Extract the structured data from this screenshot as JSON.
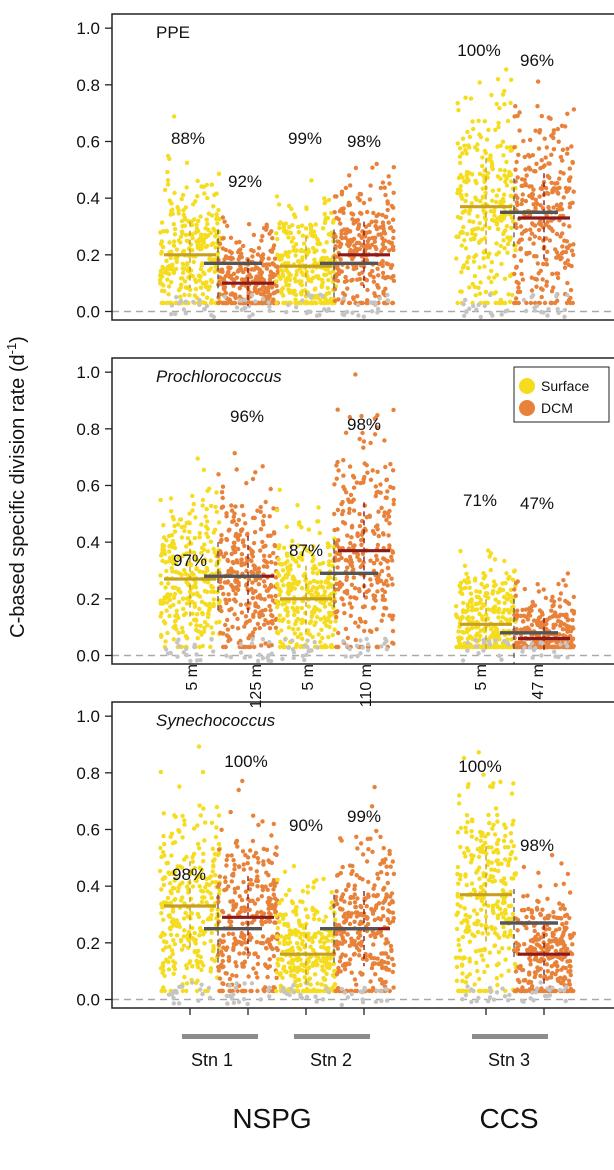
{
  "figure": {
    "ylabel": "C-based specific division rate (d",
    "ylabel_sup": "-1",
    "ylabel_close": ")",
    "legend": [
      {
        "label": "Surface",
        "color": "#f5dc1e"
      },
      {
        "label": "DCM",
        "color": "#e8823a"
      }
    ],
    "sample_ticks": [
      "5 m",
      "125 m",
      "5 m",
      "110 m",
      "5 m",
      "47 m"
    ],
    "stations": [
      "Stn 1",
      "Stn 2",
      "Stn 3"
    ],
    "regions": [
      "NSPG",
      "CCS"
    ],
    "colors": {
      "surface": "#f5dc1e",
      "dcm": "#e8823a",
      "excluded": "#c4c4c4",
      "surface_median": "#c8a020",
      "dcm_median": "#8b1a1a",
      "pooled_median": "#555555",
      "zero_line": "#aaaaaa",
      "station_bar": "#8c8c8c"
    }
  },
  "chart_data": [
    {
      "type": "scatter",
      "title": "PPE",
      "title_italic": false,
      "ylim": [
        -0.03,
        1.05
      ],
      "yticks": [
        "0.0",
        "0.2",
        "0.4",
        "0.6",
        "0.8",
        "1.0"
      ],
      "categories": [
        "5 m",
        "125 m",
        "5 m",
        "110 m",
        "5 m",
        "47 m"
      ],
      "groups": [
        {
          "sample": "Stn 1 5 m",
          "layer": "Surface",
          "median": 0.2,
          "percent": "88%"
        },
        {
          "sample": "Stn 1 125 m",
          "layer": "DCM",
          "median": 0.1,
          "percent": "92%"
        },
        {
          "sample": "Stn 2 5 m",
          "layer": "Surface",
          "median": 0.16,
          "percent": "99%"
        },
        {
          "sample": "Stn 2 110 m",
          "layer": "DCM",
          "median": 0.2,
          "percent": "98%"
        },
        {
          "sample": "Stn 3 5 m",
          "layer": "Surface",
          "median": 0.37,
          "percent": "100%"
        },
        {
          "sample": "Stn 3 47 m",
          "layer": "DCM",
          "median": 0.33,
          "percent": "96%"
        }
      ],
      "station_medians": [
        0.17,
        0.17,
        0.35
      ]
    },
    {
      "type": "scatter",
      "title": "Prochlorococcus",
      "title_italic": true,
      "ylim": [
        -0.03,
        1.05
      ],
      "yticks": [
        "0.0",
        "0.2",
        "0.4",
        "0.6",
        "0.8",
        "1.0"
      ],
      "categories": [
        "5 m",
        "125 m",
        "5 m",
        "110 m",
        "5 m",
        "47 m"
      ],
      "groups": [
        {
          "sample": "Stn 1 5 m",
          "layer": "Surface",
          "median": 0.27,
          "percent": "97%"
        },
        {
          "sample": "Stn 1 125 m",
          "layer": "DCM",
          "median": 0.28,
          "percent": "96%"
        },
        {
          "sample": "Stn 2 5 m",
          "layer": "Surface",
          "median": 0.2,
          "percent": "87%"
        },
        {
          "sample": "Stn 2 110 m",
          "layer": "DCM",
          "median": 0.37,
          "percent": "98%"
        },
        {
          "sample": "Stn 3 5 m",
          "layer": "Surface",
          "median": 0.11,
          "percent": "71%"
        },
        {
          "sample": "Stn 3 47 m",
          "layer": "DCM",
          "median": 0.06,
          "percent": "47%"
        }
      ],
      "station_medians": [
        0.28,
        0.29,
        0.08
      ]
    },
    {
      "type": "scatter",
      "title": "Synechococcus",
      "title_italic": true,
      "ylim": [
        -0.03,
        1.05
      ],
      "yticks": [
        "0.0",
        "0.2",
        "0.4",
        "0.6",
        "0.8",
        "1.0"
      ],
      "categories": [
        "5 m",
        "125 m",
        "5 m",
        "110 m",
        "5 m",
        "47 m"
      ],
      "groups": [
        {
          "sample": "Stn 1 5 m",
          "layer": "Surface",
          "median": 0.33,
          "percent": "98%"
        },
        {
          "sample": "Stn 1 125 m",
          "layer": "DCM",
          "median": 0.29,
          "percent": "100%"
        },
        {
          "sample": "Stn 2 5 m",
          "layer": "Surface",
          "median": 0.16,
          "percent": "90%"
        },
        {
          "sample": "Stn 2 110 m",
          "layer": "DCM",
          "median": 0.25,
          "percent": "99%"
        },
        {
          "sample": "Stn 3 5 m",
          "layer": "Surface",
          "median": 0.37,
          "percent": "100%"
        },
        {
          "sample": "Stn 3 47 m",
          "layer": "DCM",
          "median": 0.16,
          "percent": "98%"
        }
      ],
      "station_medians": [
        0.25,
        0.25,
        0.27
      ]
    }
  ]
}
